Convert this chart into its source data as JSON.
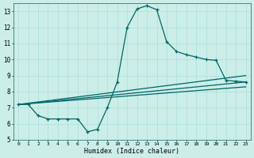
{
  "xlabel": "Humidex (Indice chaleur)",
  "background_color": "#cceee8",
  "grid_color": "#aadddd",
  "line_color": "#006666",
  "xlim": [
    -0.5,
    23.5
  ],
  "ylim": [
    5,
    13.5
  ],
  "yticks": [
    5,
    6,
    7,
    8,
    9,
    10,
    11,
    12,
    13
  ],
  "xticks": [
    0,
    1,
    2,
    3,
    4,
    5,
    6,
    7,
    8,
    9,
    10,
    11,
    12,
    13,
    14,
    15,
    16,
    17,
    18,
    19,
    20,
    21,
    22,
    23
  ],
  "curve1_x": [
    0,
    1,
    2,
    3,
    4,
    5,
    6,
    7,
    8,
    9,
    10,
    11,
    12,
    13,
    14,
    15,
    16,
    17,
    18,
    19,
    20,
    21,
    22,
    23
  ],
  "curve1_y": [
    7.2,
    7.2,
    6.5,
    6.3,
    6.3,
    6.3,
    6.3,
    5.5,
    5.65,
    7.0,
    8.6,
    12.0,
    13.15,
    13.35,
    13.1,
    11.1,
    10.5,
    10.3,
    10.15,
    10.0,
    9.95,
    8.7,
    8.65,
    8.6
  ],
  "line1_x": [
    0,
    23
  ],
  "line1_y": [
    7.2,
    9.0
  ],
  "line2_x": [
    0,
    23
  ],
  "line2_y": [
    7.2,
    8.6
  ],
  "line3_x": [
    0,
    23
  ],
  "line3_y": [
    7.2,
    8.3
  ]
}
